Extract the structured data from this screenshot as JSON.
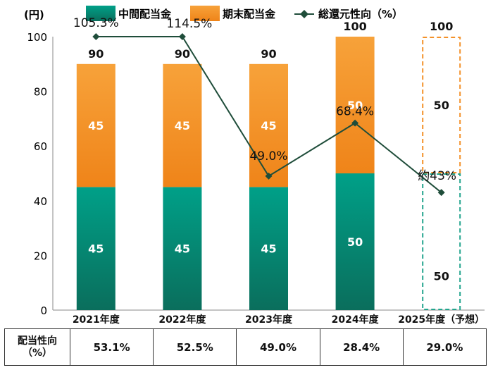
{
  "chart_data": {
    "type": "bar",
    "y_unit_label": "(円)",
    "ylim": [
      0,
      100
    ],
    "y_ticks": [
      0,
      20,
      40,
      60,
      80,
      100
    ],
    "categories": [
      "2021年度",
      "2022年度",
      "2023年度",
      "2024年度",
      "2025年度（予想）"
    ],
    "stacked": true,
    "series": [
      {
        "name": "中間配当金",
        "values": [
          45,
          45,
          45,
          50,
          50
        ],
        "color": "#00957F"
      },
      {
        "name": "期末配当金",
        "values": [
          45,
          45,
          45,
          50,
          50
        ],
        "color": "#F39129"
      }
    ],
    "bar_totals": [
      "90",
      "90",
      "90",
      "100",
      "100"
    ],
    "forecast_index": 4,
    "line_series": {
      "name": "総還元性向（%）",
      "values": [
        105.3,
        114.5,
        49.0,
        68.4,
        43
      ],
      "labels": [
        "105.3%",
        "114.5%",
        "49.0%",
        "68.4%",
        "約43%"
      ],
      "color": "#1F4D3A"
    }
  },
  "payout_table": {
    "row_header_line1": "配当性向",
    "row_header_line2": "（%）",
    "values": [
      "53.1%",
      "52.5%",
      "49.0%",
      "28.4%",
      "29.0%"
    ]
  }
}
